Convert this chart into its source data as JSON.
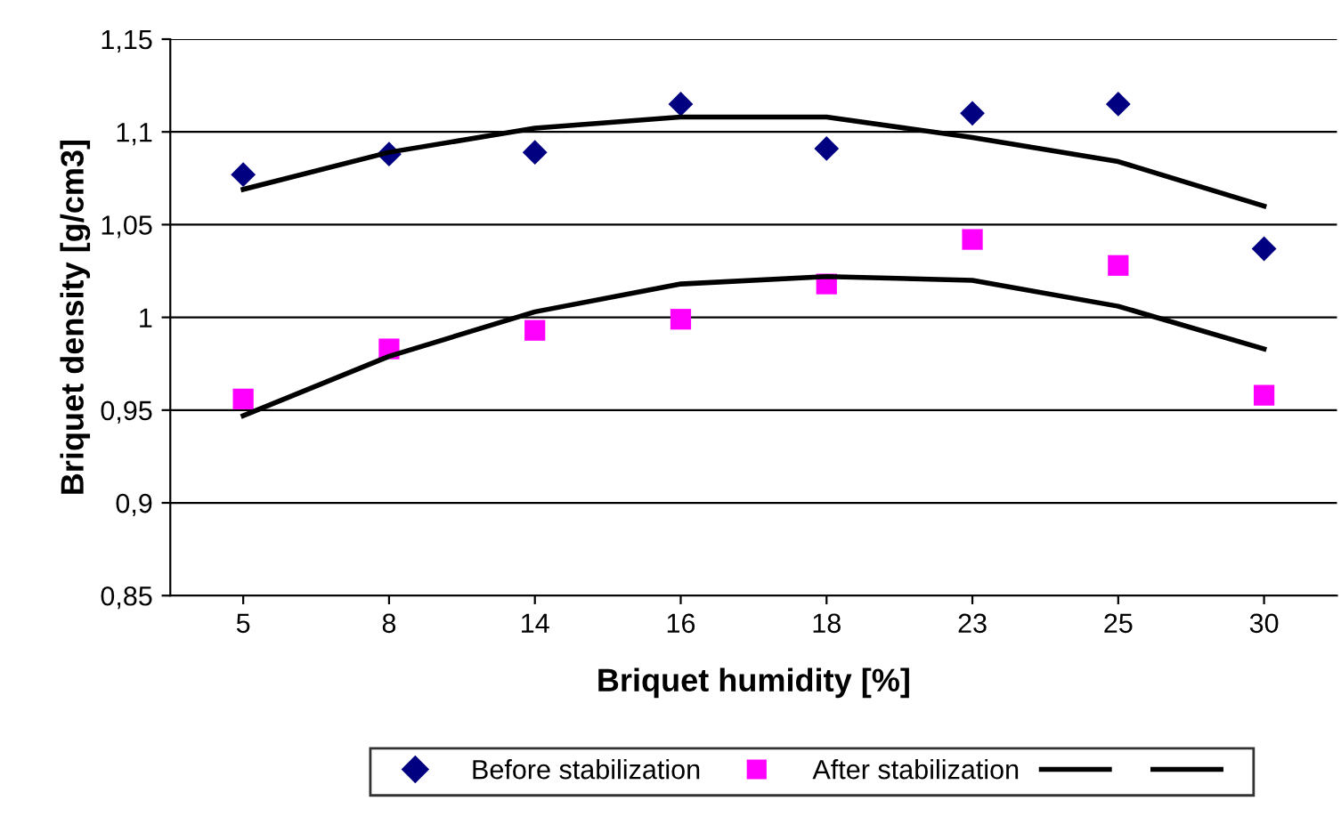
{
  "chart_data": {
    "type": "scatter",
    "xlabel": "Briquet humidity [%]",
    "ylabel": "Briquet density [g/cm3]",
    "categories": [
      "5",
      "8",
      "14",
      "16",
      "18",
      "23",
      "25",
      "30"
    ],
    "series": [
      {
        "name": "Before stabilization",
        "color": "#000080",
        "marker": "diamond",
        "values": [
          1.077,
          1.088,
          1.089,
          1.115,
          1.091,
          1.11,
          1.115,
          1.037
        ]
      },
      {
        "name": "After stabilization",
        "color": "#ff00ff",
        "marker": "square",
        "values": [
          0.956,
          0.983,
          0.993,
          0.999,
          1.018,
          1.042,
          1.028,
          0.958
        ]
      },
      {
        "type": "line",
        "color": "#000000",
        "marker": "none",
        "line_style": "solid",
        "values": [
          1.069,
          1.089,
          1.102,
          1.108,
          1.108,
          1.097,
          1.084,
          1.06
        ]
      },
      {
        "type": "line",
        "color": "#000000",
        "marker": "none",
        "line_style": "solid",
        "values": [
          0.947,
          0.979,
          1.003,
          1.018,
          1.022,
          1.02,
          1.006,
          0.983
        ]
      }
    ],
    "ylim": [
      0.85,
      1.15
    ],
    "yticks": [
      {
        "value": 0.85,
        "label": "0,85"
      },
      {
        "value": 0.9,
        "label": "0,9"
      },
      {
        "value": 0.95,
        "label": "0,95"
      },
      {
        "value": 1.0,
        "label": "1"
      },
      {
        "value": 1.05,
        "label": "1,05"
      },
      {
        "value": 1.1,
        "label": "1,1"
      },
      {
        "value": 1.15,
        "label": "1,15"
      }
    ],
    "grid": "y",
    "legend": "bottom"
  }
}
